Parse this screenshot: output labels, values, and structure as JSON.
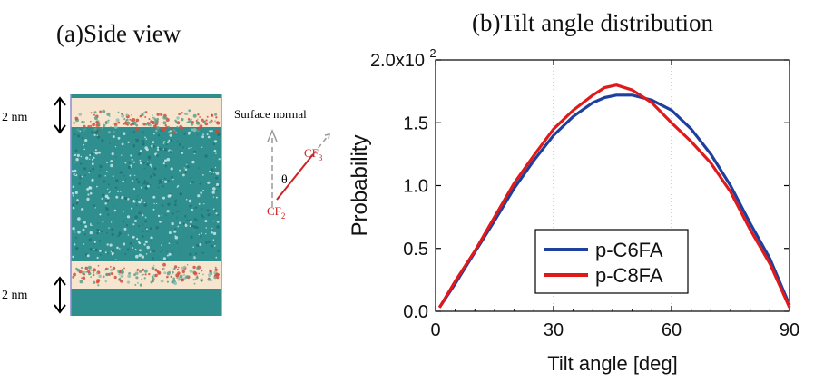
{
  "panel_a": {
    "title": "(a)Side view",
    "top_thickness": "2 nm",
    "bottom_thickness": "2 nm",
    "surface_normal_label": "Surface normal",
    "theta_label": "θ",
    "cf3_label": "CF",
    "cf3_subscript": "3",
    "cf2_label": "CF",
    "cf2_subscript": "2",
    "colors": {
      "bulk": "#2f8e8e",
      "interface": "#f6e6cf",
      "fluoro": "#d44a3a",
      "vector": "#cc2222"
    }
  },
  "panel_b": {
    "title": "(b)Tilt angle distribution"
  },
  "chart_data": {
    "type": "line",
    "title": "(b)Tilt angle distribution",
    "xlabel": "Tilt angle [deg]",
    "ylabel": "Probability",
    "xlim": [
      0,
      90
    ],
    "ylim": [
      0,
      0.02
    ],
    "x_ticks": [
      0,
      30,
      60,
      90
    ],
    "x_tick_labels": [
      "0",
      "30",
      "60",
      "90"
    ],
    "y_ticks": [
      0,
      0.005,
      0.01,
      0.015,
      0.02
    ],
    "y_tick_labels": [
      "0.0",
      "0.5",
      "1.0",
      "1.5",
      "2.0x10"
    ],
    "y_top_exponent": "-2",
    "vertical_guides": [
      30,
      60
    ],
    "legend_position": "lower-center",
    "series": [
      {
        "name": "p-C6FA",
        "color": "#1f3f9f",
        "x": [
          1,
          5,
          10,
          15,
          20,
          25,
          30,
          35,
          40,
          43,
          46,
          50,
          55,
          60,
          65,
          70,
          75,
          80,
          85,
          90
        ],
        "values": [
          0.0003,
          0.0022,
          0.0047,
          0.0072,
          0.0098,
          0.012,
          0.014,
          0.0155,
          0.0166,
          0.017,
          0.0172,
          0.0172,
          0.0168,
          0.016,
          0.0145,
          0.0125,
          0.01,
          0.007,
          0.0042,
          0.0005
        ]
      },
      {
        "name": "p-C8FA",
        "color": "#e01a1a",
        "x": [
          1,
          5,
          10,
          15,
          20,
          25,
          30,
          35,
          40,
          43,
          46,
          50,
          55,
          60,
          65,
          70,
          75,
          80,
          85,
          90
        ],
        "values": [
          0.0003,
          0.0024,
          0.0048,
          0.0075,
          0.0102,
          0.0124,
          0.0145,
          0.016,
          0.0172,
          0.0178,
          0.018,
          0.0176,
          0.0166,
          0.015,
          0.0135,
          0.0118,
          0.0095,
          0.0065,
          0.0038,
          0.0003
        ]
      }
    ]
  }
}
